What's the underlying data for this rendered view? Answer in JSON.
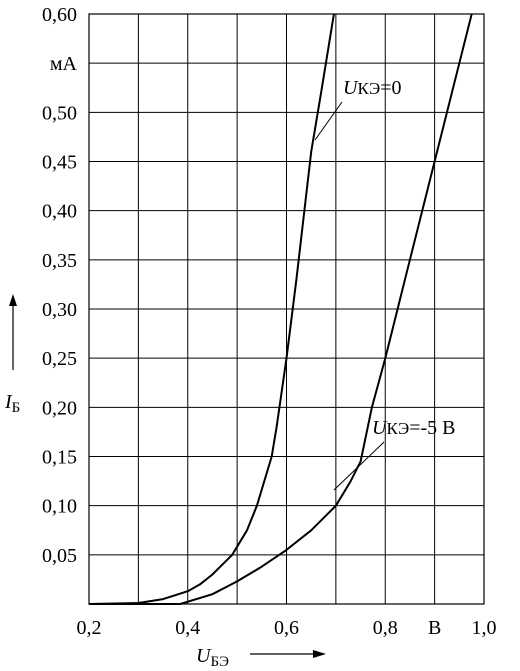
{
  "chart_data": {
    "type": "line",
    "x_label": {
      "var": "U",
      "sub": "БЭ"
    },
    "y_label": {
      "var": "I",
      "sub": "Б"
    },
    "xlim": [
      0.2,
      1.0
    ],
    "ylim": [
      0,
      0.6
    ],
    "xticks": [
      {
        "value": 0.2,
        "label": "0,2"
      },
      {
        "value": 0.3,
        "label": null
      },
      {
        "value": 0.4,
        "label": "0,4"
      },
      {
        "value": 0.5,
        "label": null
      },
      {
        "value": 0.6,
        "label": "0,6"
      },
      {
        "value": 0.7,
        "label": null
      },
      {
        "value": 0.8,
        "label": "0,8"
      },
      {
        "value": 0.9,
        "label": "В"
      },
      {
        "value": 1.0,
        "label": "1,0"
      }
    ],
    "yticks": [
      {
        "value": 0.05,
        "label": "0,05"
      },
      {
        "value": 0.1,
        "label": "0,10"
      },
      {
        "value": 0.15,
        "label": "0,15"
      },
      {
        "value": 0.2,
        "label": "0,20"
      },
      {
        "value": 0.25,
        "label": "0,25"
      },
      {
        "value": 0.3,
        "label": "0,30"
      },
      {
        "value": 0.35,
        "label": "0,35"
      },
      {
        "value": 0.4,
        "label": "0,40"
      },
      {
        "value": 0.45,
        "label": "0,45"
      },
      {
        "value": 0.5,
        "label": "0,50"
      },
      {
        "value": 0.55,
        "label": "мА"
      },
      {
        "value": 0.6,
        "label": "0,60"
      }
    ],
    "grid": true,
    "series": [
      {
        "name": {
          "var": "U",
          "sub": "КЭ",
          "text": "=0"
        },
        "color": "#000000",
        "x": [
          0.2,
          0.3,
          0.35,
          0.4,
          0.425,
          0.45,
          0.49,
          0.52,
          0.54,
          0.57,
          0.58,
          0.6,
          0.62,
          0.65,
          0.67,
          0.696
        ],
        "values": [
          0,
          0.001,
          0.005,
          0.013,
          0.02,
          0.03,
          0.05,
          0.075,
          0.1,
          0.15,
          0.18,
          0.25,
          0.33,
          0.46,
          0.52,
          0.6
        ]
      },
      {
        "name": {
          "var": "U",
          "sub": "КЭ",
          "text": "=-5 В"
        },
        "color": "#000000",
        "x": [
          0.2,
          0.385,
          0.45,
          0.5,
          0.55,
          0.6,
          0.65,
          0.7,
          0.73,
          0.75,
          0.773,
          0.8,
          0.85,
          0.9,
          0.94,
          0.975
        ],
        "values": [
          0,
          0,
          0.01,
          0.023,
          0.038,
          0.055,
          0.075,
          0.1,
          0.125,
          0.145,
          0.2,
          0.25,
          0.35,
          0.45,
          0.53,
          0.6
        ]
      }
    ]
  }
}
